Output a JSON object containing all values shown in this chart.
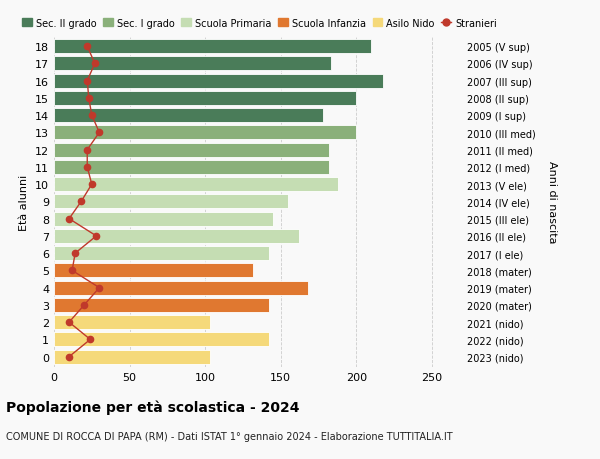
{
  "ages": [
    18,
    17,
    16,
    15,
    14,
    13,
    12,
    11,
    10,
    9,
    8,
    7,
    6,
    5,
    4,
    3,
    2,
    1,
    0
  ],
  "right_labels": [
    "2005 (V sup)",
    "2006 (IV sup)",
    "2007 (III sup)",
    "2008 (II sup)",
    "2009 (I sup)",
    "2010 (III med)",
    "2011 (II med)",
    "2012 (I med)",
    "2013 (V ele)",
    "2014 (IV ele)",
    "2015 (III ele)",
    "2016 (II ele)",
    "2017 (I ele)",
    "2018 (mater)",
    "2019 (mater)",
    "2020 (mater)",
    "2021 (nido)",
    "2022 (nido)",
    "2023 (nido)"
  ],
  "bar_values": [
    210,
    183,
    218,
    200,
    178,
    200,
    182,
    182,
    188,
    155,
    145,
    162,
    142,
    132,
    168,
    142,
    103,
    142,
    103
  ],
  "bar_colors": [
    "#4a7c59",
    "#4a7c59",
    "#4a7c59",
    "#4a7c59",
    "#4a7c59",
    "#8ab07a",
    "#8ab07a",
    "#8ab07a",
    "#c5ddb3",
    "#c5ddb3",
    "#c5ddb3",
    "#c5ddb3",
    "#c5ddb3",
    "#e07830",
    "#e07830",
    "#e07830",
    "#f5d97a",
    "#f5d97a",
    "#f5d97a"
  ],
  "stranieri_values": [
    22,
    27,
    22,
    23,
    25,
    30,
    22,
    22,
    25,
    18,
    10,
    28,
    14,
    12,
    30,
    20,
    10,
    24,
    10
  ],
  "legend_labels": [
    "Sec. II grado",
    "Sec. I grado",
    "Scuola Primaria",
    "Scuola Infanzia",
    "Asilo Nido",
    "Stranieri"
  ],
  "legend_colors": [
    "#4a7c59",
    "#8ab07a",
    "#c5ddb3",
    "#e07830",
    "#f5d97a",
    "#c0392b"
  ],
  "ylabel": "Età alunni",
  "right_ylabel": "Anni di nascita",
  "title": "Popolazione per età scolastica - 2024",
  "subtitle": "COMUNE DI ROCCA DI PAPA (RM) - Dati ISTAT 1° gennaio 2024 - Elaborazione TUTTITALIA.IT",
  "xlim": [
    0,
    270
  ],
  "xticks": [
    0,
    50,
    100,
    150,
    200,
    250
  ],
  "bg_color": "#f9f9f9",
  "grid_color": "#cccccc",
  "bar_height": 0.82
}
